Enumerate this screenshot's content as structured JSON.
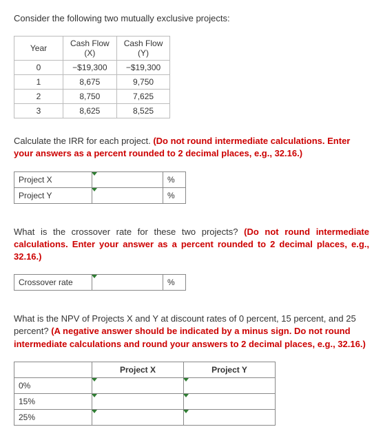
{
  "intro": "Consider the following two mutually exclusive projects:",
  "cashflow_table": {
    "headers": [
      "Year",
      "Cash Flow\n(X)",
      "Cash Flow\n(Y)"
    ],
    "rows": [
      [
        "0",
        "−$19,300",
        "−$19,300"
      ],
      [
        "1",
        "8,675",
        "9,750"
      ],
      [
        "2",
        "8,750",
        "7,625"
      ],
      [
        "3",
        "8,625",
        "8,525"
      ]
    ]
  },
  "q1": {
    "lead": "Calculate the IRR for each project. ",
    "red": "(Do not round intermediate calculations. Enter your answers as a percent rounded to 2 decimal places, e.g., 32.16.)",
    "rows": [
      {
        "label": "Project X",
        "unit": "%"
      },
      {
        "label": "Project Y",
        "unit": "%"
      }
    ]
  },
  "q2": {
    "lead": "What is the crossover rate for these two projects? ",
    "red": "(Do not round intermediate calculations. Enter your answer as a percent rounded to 2 decimal places, e.g., 32.16.)",
    "rows": [
      {
        "label": "Crossover rate",
        "unit": "%"
      }
    ]
  },
  "q3": {
    "lead": "What is the NPV of Projects X and Y at discount rates of 0 percent, 15 percent, and 25 percent? ",
    "red": "(A negative answer should be indicated by a minus sign. Do not round intermediate calculations and round your answers to 2 decimal places, e.g., 32.16.)",
    "col_headers": [
      "Project X",
      "Project Y"
    ],
    "row_labels": [
      "0%",
      "15%",
      "25%"
    ]
  },
  "colors": {
    "red": "#c00",
    "border": "#888",
    "marker": "#2e7d32"
  }
}
